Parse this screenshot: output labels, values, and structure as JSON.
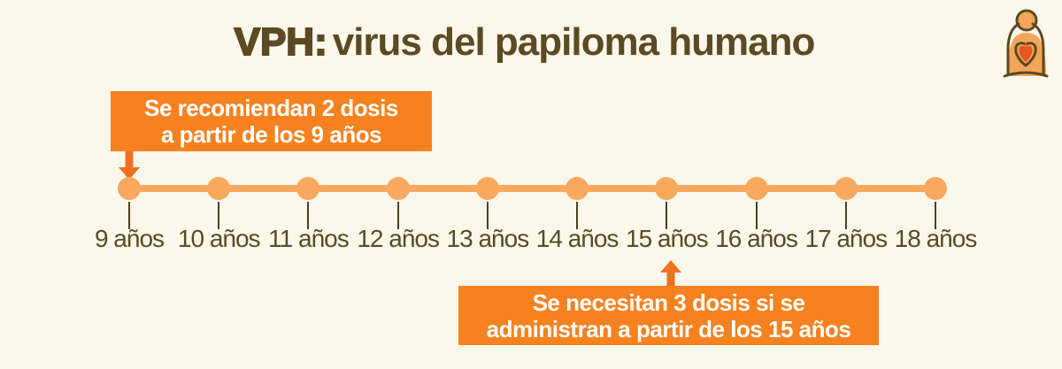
{
  "title": {
    "acronym": "VPH:",
    "rest": "virus del papiloma humano"
  },
  "logo": {
    "name": "mother-child-heart-logo"
  },
  "callouts": {
    "top": {
      "line1": "Se recomiendan 2 dosis",
      "line2": "a partir de los 9 años",
      "points_to": "9 años"
    },
    "bottom": {
      "line1": "Se necesitan 3 dosis si se",
      "line2": "administran a partir de los 15 años",
      "points_to": "15 años"
    }
  },
  "timeline": {
    "labels": [
      "9 años",
      "10 años",
      "11 años",
      "12 años",
      "13 años",
      "14 años",
      "15 años",
      "16 años",
      "17 años",
      "18 años"
    ]
  },
  "colors": {
    "background": "#FCF7EB",
    "accent_orange": "#F6821F",
    "arrow_orange": "#EE7120",
    "light_orange": "#F8A95F",
    "text_brown": "#5B4A22",
    "heart_red_orange": "#E4571E"
  }
}
